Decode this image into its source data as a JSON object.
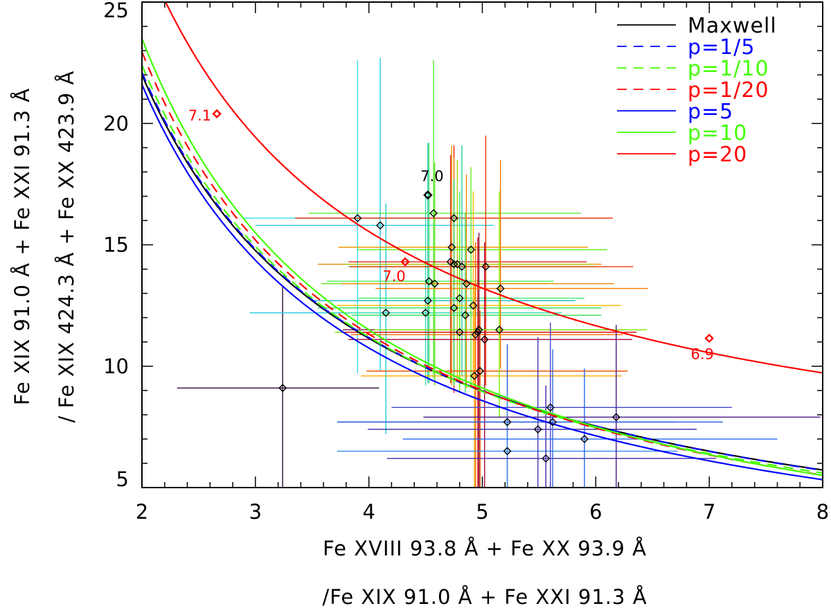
{
  "chart_data": {
    "type": "scatter",
    "xlabel_line1": "Fe XVIII 93.8 Å + Fe XX 93.9 Å",
    "xlabel_line2": "/Fe XIX 91.0 Å + Fe XXI 91.3 Å",
    "ylabel_line1": "Fe XIX 91.0 Å + Fe XXI 91.3 Å",
    "ylabel_line2": "/ Fe XIX 424.3 Å + Fe XX 423.9 Å",
    "xlim": [
      2,
      8
    ],
    "ylim": [
      5,
      25
    ],
    "xticks": [
      2,
      3,
      4,
      5,
      6,
      7,
      8
    ],
    "yticks": [
      5,
      10,
      15,
      20,
      25
    ],
    "x_minor_step": 0.2,
    "y_minor_step": 1,
    "legend_position": "top-right",
    "series": [
      {
        "name": "Maxwell",
        "color": "#000000",
        "dash": false,
        "k": 43.4,
        "c": 0.3
      },
      {
        "name": "p=1/5",
        "color": "#0000ff",
        "dash": true,
        "k": 43.7,
        "c": 0.25
      },
      {
        "name": "p=1/10",
        "color": "#44ff00",
        "dash": true,
        "k": 44.8,
        "c": 0.0
      },
      {
        "name": "p=1/20",
        "color": "#ff0000",
        "dash": true,
        "k": 46.5,
        "c": -0.3
      },
      {
        "name": "p=5",
        "color": "#0000ff",
        "dash": false,
        "k": 43.4,
        "c": -0.1
      },
      {
        "name": "p=10",
        "color": "#44ff00",
        "dash": false,
        "k": 48.0,
        "c": -0.5
      },
      {
        "name": "p=20",
        "color": "#ff0000",
        "dash": false,
        "k": 46.6,
        "c": 3.9
      }
    ],
    "annotations": [
      {
        "text": "7.1",
        "x": 2.66,
        "y": 20.4,
        "color": "#ff0000",
        "dx": -8,
        "dy": 10,
        "anchor": "end"
      },
      {
        "text": "7.0",
        "x": 4.52,
        "y": 17.05,
        "color": "#000000",
        "dx": 6,
        "dy": -20,
        "anchor": "middle"
      },
      {
        "text": "7.0",
        "x": 4.32,
        "y": 14.3,
        "color": "#ff0000",
        "dx": -16,
        "dy": 28,
        "anchor": "middle"
      },
      {
        "text": "6.9",
        "x": 7.0,
        "y": 11.15,
        "color": "#ff0000",
        "dx": -10,
        "dy": 30,
        "anchor": "middle"
      }
    ],
    "marked_points": [
      {
        "x": 2.66,
        "y": 20.4,
        "color": "#ff0000"
      },
      {
        "x": 4.32,
        "y": 14.3,
        "color": "#ff0000"
      },
      {
        "x": 7.0,
        "y": 11.15,
        "color": "#ff0000"
      },
      {
        "x": 4.52,
        "y": 17.05,
        "color": "#000000"
      }
    ],
    "observations": [
      {
        "x": 3.24,
        "y": 9.1,
        "xerr": [
          0.93,
          0.85
        ],
        "yerr": [
          4.5,
          4.2
        ],
        "color": "#2b0a3a"
      },
      {
        "x": 3.9,
        "y": 16.1,
        "xerr": [
          1.0,
          0.9
        ],
        "yerr": [
          6.4,
          6.5
        ],
        "color": "#33ddee"
      },
      {
        "x": 4.1,
        "y": 15.8,
        "xerr": [
          1.1,
          1.0
        ],
        "yerr": [
          6.0,
          6.9
        ],
        "color": "#22ccee"
      },
      {
        "x": 4.15,
        "y": 12.2,
        "xerr": [
          1.2,
          1.0
        ],
        "yerr": [
          5.0,
          4.5
        ],
        "color": "#22ccdd"
      },
      {
        "x": 4.5,
        "y": 12.2,
        "xerr": [
          0.7,
          1.2
        ],
        "yerr": [
          3.0,
          5.0
        ],
        "color": "#33ddaa"
      },
      {
        "x": 4.52,
        "y": 12.7,
        "xerr": [
          1.0,
          1.3
        ],
        "yerr": [
          3.4,
          6.5
        ],
        "color": "#22bbcc"
      },
      {
        "x": 4.53,
        "y": 13.5,
        "xerr": [
          0.9,
          1.1
        ],
        "yerr": [
          4.2,
          5.7
        ],
        "color": "#44ee55"
      },
      {
        "x": 4.57,
        "y": 16.3,
        "xerr": [
          1.1,
          1.3
        ],
        "yerr": [
          6.8,
          6.3
        ],
        "color": "#55ee33"
      },
      {
        "x": 4.58,
        "y": 13.4,
        "xerr": [
          1.0,
          1.0
        ],
        "yerr": [
          4.2,
          5.0
        ],
        "color": "#66dd22"
      },
      {
        "x": 4.72,
        "y": 14.3,
        "xerr": [
          0.9,
          1.2
        ],
        "yerr": [
          5.0,
          4.4
        ],
        "color": "#dd2222"
      },
      {
        "x": 4.73,
        "y": 14.9,
        "xerr": [
          1.0,
          1.2
        ],
        "yerr": [
          5.7,
          4.2
        ],
        "color": "#ee9900"
      },
      {
        "x": 4.75,
        "y": 16.1,
        "xerr": [
          1.4,
          1.4
        ],
        "yerr": [
          7.2,
          3.0
        ],
        "color": "#ee2200"
      },
      {
        "x": 4.75,
        "y": 14.2,
        "xerr": [
          1.2,
          1.3
        ],
        "yerr": [
          5.0,
          4.4
        ],
        "color": "#ee8800"
      },
      {
        "x": 4.75,
        "y": 12.4,
        "xerr": [
          1.2,
          1.3
        ],
        "yerr": [
          3.2,
          5.3
        ],
        "color": "#33dd66"
      },
      {
        "x": 4.78,
        "y": 14.2,
        "xerr": [
          1.0,
          1.2
        ],
        "yerr": [
          4.8,
          4.3
        ],
        "color": "#aacc00"
      },
      {
        "x": 4.8,
        "y": 12.8,
        "xerr": [
          0.9,
          1.1
        ],
        "yerr": [
          3.6,
          4.4
        ],
        "color": "#33ee77"
      },
      {
        "x": 4.8,
        "y": 11.4,
        "xerr": [
          1.1,
          1.4
        ],
        "yerr": [
          2.5,
          4.3
        ],
        "color": "#66ee00"
      },
      {
        "x": 4.82,
        "y": 14.1,
        "xerr": [
          1.0,
          1.2
        ],
        "yerr": [
          4.5,
          5.0
        ],
        "color": "#22cc99"
      },
      {
        "x": 4.85,
        "y": 12.1,
        "xerr": [
          1.0,
          1.2
        ],
        "yerr": [
          3.2,
          4.2
        ],
        "color": "#33dd55"
      },
      {
        "x": 4.86,
        "y": 13.4,
        "xerr": [
          1.1,
          1.3
        ],
        "yerr": [
          4.3,
          4.5
        ],
        "color": "#ee8800"
      },
      {
        "x": 4.9,
        "y": 14.8,
        "xerr": [
          1.0,
          1.2
        ],
        "yerr": [
          5.6,
          3.4
        ],
        "color": "#66ee22"
      },
      {
        "x": 4.92,
        "y": 12.5,
        "xerr": [
          1.2,
          1.3
        ],
        "yerr": [
          3.2,
          4.7
        ],
        "color": "#ffbb00"
      },
      {
        "x": 4.93,
        "y": 9.6,
        "xerr": [
          1.0,
          1.3
        ],
        "yerr": [
          4.6,
          3.8
        ],
        "color": "#ffaa00"
      },
      {
        "x": 4.94,
        "y": 11.3,
        "xerr": [
          1.1,
          1.3
        ],
        "yerr": [
          6.3,
          3.8
        ],
        "color": "#ff6600"
      },
      {
        "x": 4.96,
        "y": 11.4,
        "xerr": [
          1.2,
          1.4
        ],
        "yerr": [
          6.4,
          3.9
        ],
        "color": "#dd0000"
      },
      {
        "x": 4.97,
        "y": 11.5,
        "xerr": [
          1.2,
          1.3
        ],
        "yerr": [
          6.5,
          4.0
        ],
        "color": "#7a1040"
      },
      {
        "x": 4.98,
        "y": 9.8,
        "xerr": [
          1.0,
          1.3
        ],
        "yerr": [
          4.8,
          2.5
        ],
        "color": "#ee5500"
      },
      {
        "x": 5.02,
        "y": 11.1,
        "xerr": [
          1.2,
          1.3
        ],
        "yerr": [
          6.1,
          4.0
        ],
        "color": "#aa0033"
      },
      {
        "x": 5.03,
        "y": 14.1,
        "xerr": [
          1.2,
          1.3
        ],
        "yerr": [
          4.9,
          5.4
        ],
        "color": "#ee3300"
      },
      {
        "x": 5.15,
        "y": 11.5,
        "xerr": [
          1.1,
          1.3
        ],
        "yerr": [
          3.6,
          5.7
        ],
        "color": "#77ee00"
      },
      {
        "x": 5.16,
        "y": 13.2,
        "xerr": [
          1.1,
          1.3
        ],
        "yerr": [
          3.3,
          5.3
        ],
        "color": "#ff7700"
      },
      {
        "x": 5.22,
        "y": 7.7,
        "xerr": [
          1.5,
          1.5
        ],
        "yerr": [
          2.7,
          3.2
        ],
        "color": "#2255dd"
      },
      {
        "x": 5.22,
        "y": 6.5,
        "xerr": [
          1.5,
          1.5
        ],
        "yerr": [
          1.5,
          2.5
        ],
        "color": "#3388ee"
      },
      {
        "x": 5.49,
        "y": 7.4,
        "xerr": [
          1.5,
          1.4
        ],
        "yerr": [
          2.4,
          3.8
        ],
        "color": "#4433aa"
      },
      {
        "x": 5.56,
        "y": 6.2,
        "xerr": [
          1.4,
          1.5
        ],
        "yerr": [
          1.2,
          3.0
        ],
        "color": "#4422aa"
      },
      {
        "x": 5.6,
        "y": 8.3,
        "xerr": [
          1.4,
          1.6
        ],
        "yerr": [
          3.3,
          3.5
        ],
        "color": "#4444cc"
      },
      {
        "x": 5.62,
        "y": 7.7,
        "xerr": [
          1.6,
          1.5
        ],
        "yerr": [
          2.7,
          3.0
        ],
        "color": "#3366dd"
      },
      {
        "x": 5.9,
        "y": 7.0,
        "xerr": [
          1.6,
          1.7
        ],
        "yerr": [
          2.0,
          2.9
        ],
        "color": "#2266ee"
      },
      {
        "x": 6.18,
        "y": 7.9,
        "xerr": [
          1.7,
          1.8
        ],
        "yerr": [
          2.9,
          3.8
        ],
        "color": "#4a1a88"
      }
    ]
  }
}
